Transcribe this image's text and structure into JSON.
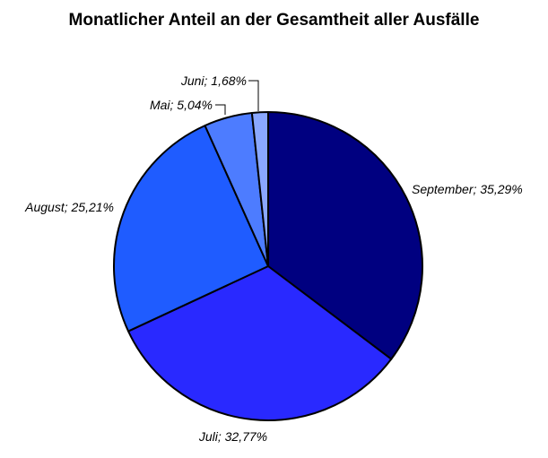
{
  "chart_data": {
    "type": "pie",
    "title": "Monatlicher Anteil an der Gesamtheit aller Ausfälle",
    "slices": [
      {
        "label": "September",
        "value": 35.29,
        "display": "September; 35,29%",
        "color": "#000080"
      },
      {
        "label": "Juli",
        "value": 32.77,
        "display": "Juli; 32,77%",
        "color": "#2929FF"
      },
      {
        "label": "August",
        "value": 25.21,
        "display": "August; 25,21%",
        "color": "#1F5CFF"
      },
      {
        "label": "Mai",
        "value": 5.04,
        "display": "Mai; 5,04%",
        "color": "#4D7CFF"
      },
      {
        "label": "Juni",
        "value": 1.68,
        "display": "Juni; 1,68%",
        "color": "#8AA8FF"
      }
    ],
    "legend": false,
    "start_angle": "12 o'clock",
    "direction": "clockwise",
    "label_style": "italic"
  }
}
